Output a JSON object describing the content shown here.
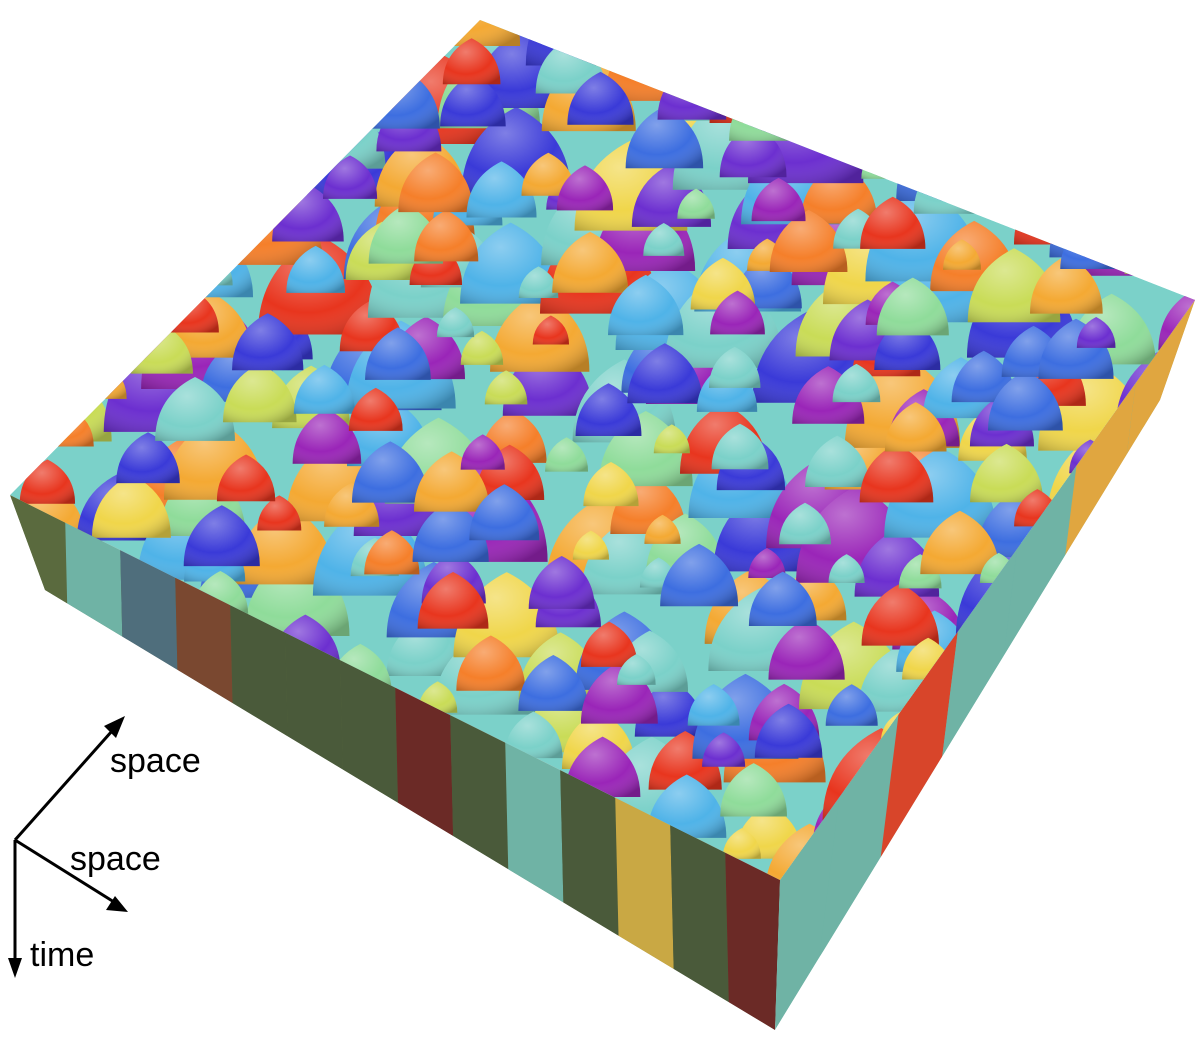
{
  "axes": {
    "labels": [
      "space",
      "space",
      "time"
    ]
  },
  "palette": [
    "#e8351e",
    "#f57f2a",
    "#f4a933",
    "#f0d64a",
    "#c9dc57",
    "#8fdc9a",
    "#7bd1c9",
    "#4fb3e8",
    "#3d6ee0",
    "#3a3ad8",
    "#6c2fd0",
    "#9a25b8"
  ],
  "side_palette": [
    "#6b2a26",
    "#5a6a3e",
    "#4f6e7c",
    "#4a5a3a",
    "#7a4830",
    "#c9a844",
    "#6fb3a5"
  ]
}
